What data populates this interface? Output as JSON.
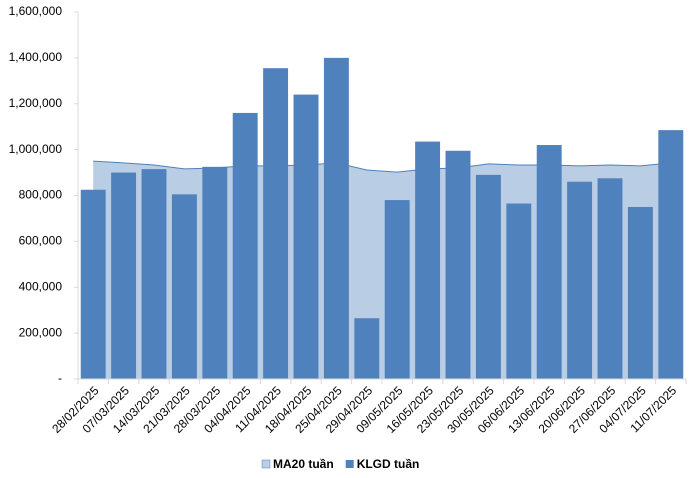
{
  "chart_data": {
    "type": "bar",
    "categories": [
      "28/02/2025",
      "07/03/2025",
      "14/03/2025",
      "21/03/2025",
      "28/03/2025",
      "04/04/2025",
      "11/04/2025",
      "18/04/2025",
      "25/04/2025",
      "29/04/2025",
      "09/05/2025",
      "16/05/2025",
      "23/05/2025",
      "30/05/2025",
      "06/06/2025",
      "13/06/2025",
      "20/06/2025",
      "27/06/2025",
      "04/07/2025",
      "11/07/2025"
    ],
    "series": [
      {
        "name": "MA20 tuần",
        "type": "area",
        "color": "#b9cde5",
        "line_color": "#4f81bd",
        "values": [
          950000,
          942000,
          933000,
          916000,
          920000,
          929000,
          929000,
          933000,
          942000,
          911000,
          902000,
          916000,
          920000,
          938000,
          933000,
          933000,
          929000,
          933000,
          929000,
          942000
        ]
      },
      {
        "name": "KLGD tuần",
        "type": "bar",
        "color": "#4f81bd",
        "values": [
          825000,
          900000,
          915000,
          805000,
          925000,
          1160000,
          1355000,
          1240000,
          1400000,
          265000,
          780000,
          1035000,
          995000,
          890000,
          765000,
          1020000,
          860000,
          875000,
          750000,
          1085000
        ]
      }
    ],
    "ylim": [
      0,
      1600000
    ],
    "yticks": [
      {
        "value": 0,
        "label": "-"
      },
      {
        "value": 200000,
        "label": "200,000"
      },
      {
        "value": 400000,
        "label": "400,000"
      },
      {
        "value": 600000,
        "label": "600,000"
      },
      {
        "value": 800000,
        "label": "800,000"
      },
      {
        "value": 1000000,
        "label": "1,000,000"
      },
      {
        "value": 1200000,
        "label": "1,200,000"
      },
      {
        "value": 1400000,
        "label": "1,400,000"
      },
      {
        "value": 1600000,
        "label": "1,600,000"
      }
    ],
    "grid": false,
    "legend": "bottom"
  }
}
